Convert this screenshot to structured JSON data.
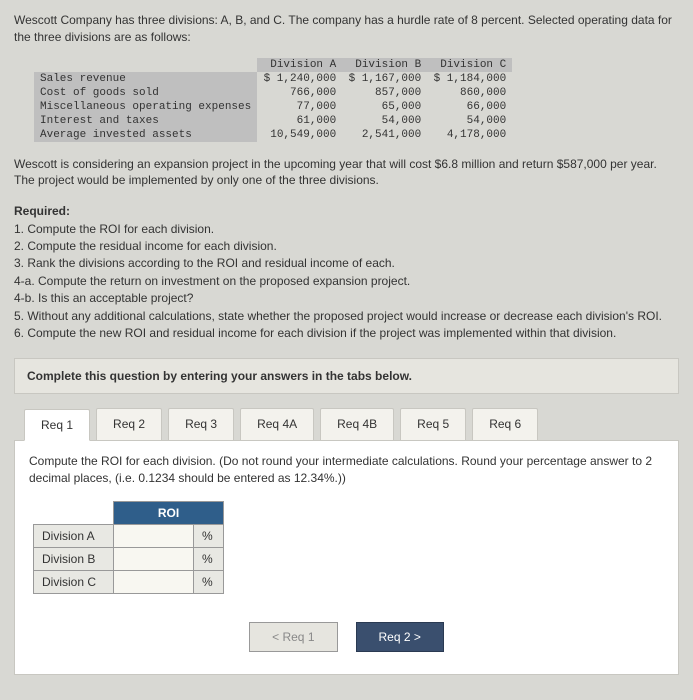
{
  "intro": "Wescott Company has three divisions: A, B, and C. The company has a hurdle rate of 8 percent. Selected operating data for the three divisions are as follows:",
  "data_table": {
    "column_headers": [
      "Division A",
      "Division B",
      "Division C"
    ],
    "rows": [
      {
        "label": "Sales revenue",
        "a": "$ 1,240,000",
        "b": "$ 1,167,000",
        "c": "$ 1,184,000"
      },
      {
        "label": "Cost of goods sold",
        "a": "766,000",
        "b": "857,000",
        "c": "860,000"
      },
      {
        "label": "Miscellaneous operating expenses",
        "a": "77,000",
        "b": "65,000",
        "c": "66,000"
      },
      {
        "label": "Interest and taxes",
        "a": "61,000",
        "b": "54,000",
        "c": "54,000"
      },
      {
        "label": "Average invested assets",
        "a": "10,549,000",
        "b": "2,541,000",
        "c": "4,178,000"
      }
    ]
  },
  "mid_para": "Wescott is considering an expansion project in the upcoming year that will cost $6.8 million and return $587,000 per year. The project would be implemented by only one of the three divisions.",
  "required": {
    "heading": "Required:",
    "items": [
      "1. Compute the ROI for each division.",
      "2. Compute the residual income for each division.",
      "3. Rank the divisions according to the ROI and residual income of each.",
      "4-a. Compute the return on investment on the proposed expansion project.",
      "4-b. Is this an acceptable project?",
      "5. Without any additional calculations, state whether the proposed project would increase or decrease each division's ROI.",
      "6. Compute the new ROI and residual income for each division if the project was implemented within that division."
    ]
  },
  "complete_instr": "Complete this question by entering your answers in the tabs below.",
  "tabs": [
    {
      "label": "Req 1"
    },
    {
      "label": "Req 2"
    },
    {
      "label": "Req 3"
    },
    {
      "label": "Req 4A"
    },
    {
      "label": "Req 4B"
    },
    {
      "label": "Req 5"
    },
    {
      "label": "Req 6"
    }
  ],
  "active_tab_instr": "Compute the ROI for each division. (Do not round your intermediate calculations. Round your percentage answer to 2 decimal places, (i.e. 0.1234 should be entered as 12.34%.))",
  "roi_table": {
    "header": "ROI",
    "rows": [
      {
        "label": "Division A",
        "value": "",
        "unit": "%"
      },
      {
        "label": "Division B",
        "value": "",
        "unit": "%"
      },
      {
        "label": "Division C",
        "value": "",
        "unit": "%"
      }
    ]
  },
  "nav": {
    "prev": "<  Req 1",
    "next": "Req 2  >"
  }
}
